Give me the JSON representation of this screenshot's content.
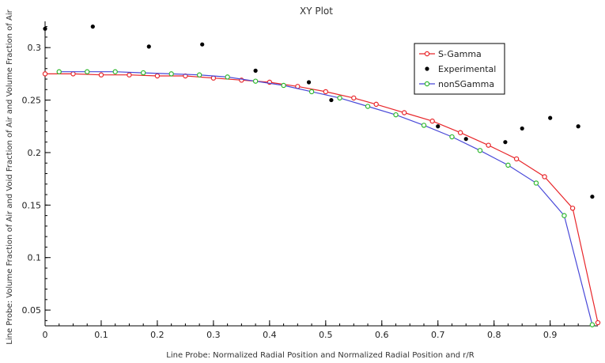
{
  "chart_data": {
    "type": "line",
    "title": "XY Plot",
    "xlabel": "Line Probe: Normalized Radial Position and Normalized Radial Position and r/R",
    "ylabel": "Line Probe: Volume Fraction of Air and Void Fraction of Air and Volume Fraction of Air",
    "xlim": [
      0,
      0.985
    ],
    "ylim": [
      0.035,
      0.325
    ],
    "xticks": [
      0,
      0.1,
      0.2,
      0.3,
      0.4,
      0.5,
      0.6,
      0.7,
      0.8,
      0.9
    ],
    "xtick_labels": [
      "0",
      "0.1",
      "0.2",
      "0.3",
      "0.4",
      "0.5",
      "0.6",
      "0.7",
      "0.8",
      "0.9"
    ],
    "yticks": [
      0.05,
      0.1,
      0.15,
      0.2,
      0.25,
      0.3
    ],
    "ytick_labels": [
      "0.05",
      "0.1",
      "0.15",
      "0.2",
      "0.25",
      "0.3"
    ],
    "grid": false,
    "legend_position": "top-right",
    "series": [
      {
        "name": "S-Gamma",
        "style": "line-open-circle",
        "color": "#e8262a",
        "x": [
          0.0,
          0.05,
          0.1,
          0.15,
          0.2,
          0.25,
          0.3,
          0.35,
          0.4,
          0.45,
          0.5,
          0.55,
          0.59,
          0.64,
          0.69,
          0.74,
          0.79,
          0.84,
          0.89,
          0.94,
          0.985
        ],
        "y": [
          0.275,
          0.275,
          0.274,
          0.274,
          0.273,
          0.273,
          0.271,
          0.269,
          0.267,
          0.263,
          0.258,
          0.252,
          0.246,
          0.238,
          0.23,
          0.219,
          0.207,
          0.194,
          0.177,
          0.147,
          0.038
        ]
      },
      {
        "name": "Experimental",
        "style": "marker-dot",
        "color": "#000000",
        "x": [
          0.0,
          0.085,
          0.185,
          0.28,
          0.375,
          0.47,
          0.51,
          0.7,
          0.75,
          0.82,
          0.85,
          0.9,
          0.95,
          0.975
        ],
        "y": [
          0.318,
          0.32,
          0.301,
          0.303,
          0.278,
          0.267,
          0.25,
          0.225,
          0.213,
          0.21,
          0.223,
          0.233,
          0.225,
          0.158
        ]
      },
      {
        "name": "nonSGamma",
        "style": "line-open-circle",
        "color": "#4848d8",
        "marker_color": "#2db82d",
        "x": [
          0.025,
          0.075,
          0.125,
          0.175,
          0.225,
          0.275,
          0.325,
          0.375,
          0.425,
          0.475,
          0.525,
          0.575,
          0.625,
          0.675,
          0.725,
          0.775,
          0.825,
          0.875,
          0.925,
          0.975
        ],
        "y": [
          0.277,
          0.277,
          0.277,
          0.276,
          0.275,
          0.274,
          0.272,
          0.268,
          0.264,
          0.258,
          0.252,
          0.244,
          0.236,
          0.226,
          0.215,
          0.202,
          0.188,
          0.171,
          0.14,
          0.036
        ]
      }
    ]
  }
}
